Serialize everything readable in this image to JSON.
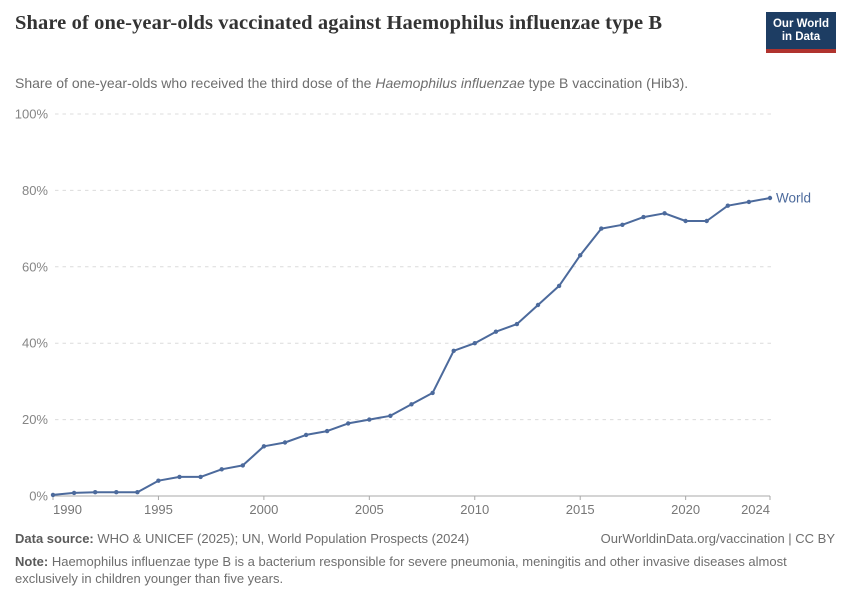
{
  "header": {
    "title": "Share of one-year-olds vaccinated against Haemophilus influenzae type B",
    "subtitle_prefix": "Share of one-year-olds who received the third dose of the ",
    "subtitle_italic": "Haemophilus influenzae",
    "subtitle_suffix": " type B vaccination (Hib3).",
    "logo_line1": "Our World",
    "logo_line2": "in Data"
  },
  "chart_data": {
    "type": "line",
    "title": "Share of one-year-olds vaccinated against Haemophilus influenzae type B",
    "x": [
      1990,
      1991,
      1992,
      1993,
      1994,
      1995,
      1996,
      1997,
      1998,
      1999,
      2000,
      2001,
      2002,
      2003,
      2004,
      2005,
      2006,
      2007,
      2008,
      2009,
      2010,
      2011,
      2012,
      2013,
      2014,
      2015,
      2016,
      2017,
      2018,
      2019,
      2020,
      2021,
      2022,
      2023,
      2024
    ],
    "series": [
      {
        "name": "World",
        "values": [
          0.3,
          0.8,
          1,
          1,
          1,
          4,
          5,
          5,
          7,
          8,
          13,
          14,
          16,
          17,
          19,
          20,
          21,
          24,
          27,
          38,
          40,
          43,
          45,
          50,
          55,
          63,
          70,
          71,
          73,
          74,
          72,
          72,
          76,
          77,
          78
        ]
      }
    ],
    "xlim": [
      1990,
      2024
    ],
    "ylim": [
      0,
      100
    ],
    "xticks": [
      1990,
      1995,
      2000,
      2005,
      2010,
      2015,
      2020,
      2024
    ],
    "yticks": [
      0,
      20,
      40,
      60,
      80,
      100
    ],
    "ytick_suffix": "%",
    "grid": "dashed horizontal gridlines",
    "legend_position": "label at end of line",
    "end_label": "World"
  },
  "colors": {
    "line": "#4C6A9C",
    "grid": "#dcdcdc",
    "axis": "#a8a8a8",
    "ytick_label": "#858585",
    "xtick_label": "#777777",
    "logo_bg": "#1d3d63",
    "logo_bar": "#b0332e"
  },
  "footer": {
    "datasource_label": "Data source:",
    "datasource_text": " WHO & UNICEF (2025); UN, World Population Prospects (2024)",
    "license_text": "OurWorldinData.org/vaccination | CC BY",
    "note_label": "Note:",
    "note_text": " Haemophilus influenzae type B is a bacterium responsible for severe pneumonia, meningitis and other invasive diseases almost exclusively in children younger than five years."
  }
}
